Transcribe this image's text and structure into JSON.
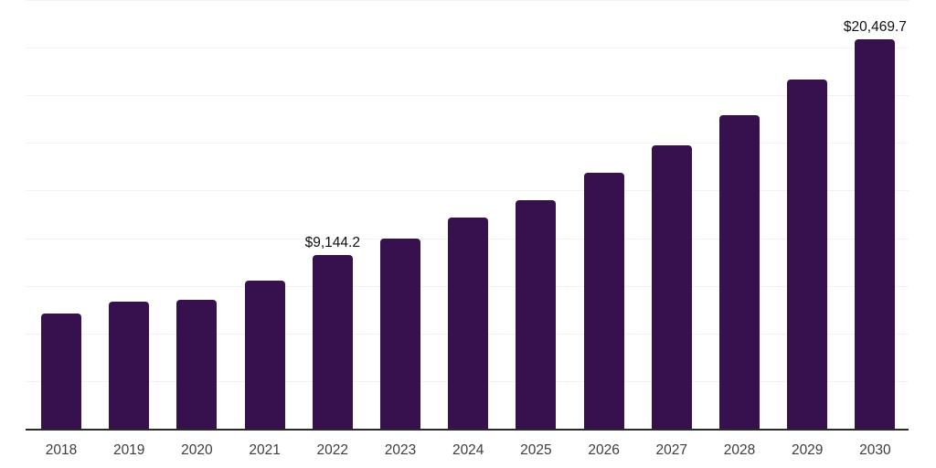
{
  "chart_data": {
    "type": "bar",
    "title": "",
    "xlabel": "",
    "ylabel": "",
    "categories": [
      "2018",
      "2019",
      "2020",
      "2021",
      "2022",
      "2023",
      "2024",
      "2025",
      "2026",
      "2027",
      "2028",
      "2029",
      "2030"
    ],
    "values": [
      6115,
      6740,
      6835,
      7830,
      9144.2,
      10050,
      11130,
      12040,
      13480,
      14920,
      16500,
      18390,
      20469.7
    ],
    "data_labels": {
      "2022": "$9,144.2",
      "2030": "$20,469.7"
    },
    "ylim": [
      0,
      22500
    ],
    "gridline_step": 2500,
    "grid": "horizontal",
    "legend": "none",
    "y_axis_tick_labels": "none",
    "colors": {
      "bar": "#37114d",
      "axis_line": "#2a2a2a",
      "gridline": "#f2f2f2",
      "tick_label": "#3d3d3d",
      "value_label": "#101010",
      "background": "#ffffff"
    }
  }
}
